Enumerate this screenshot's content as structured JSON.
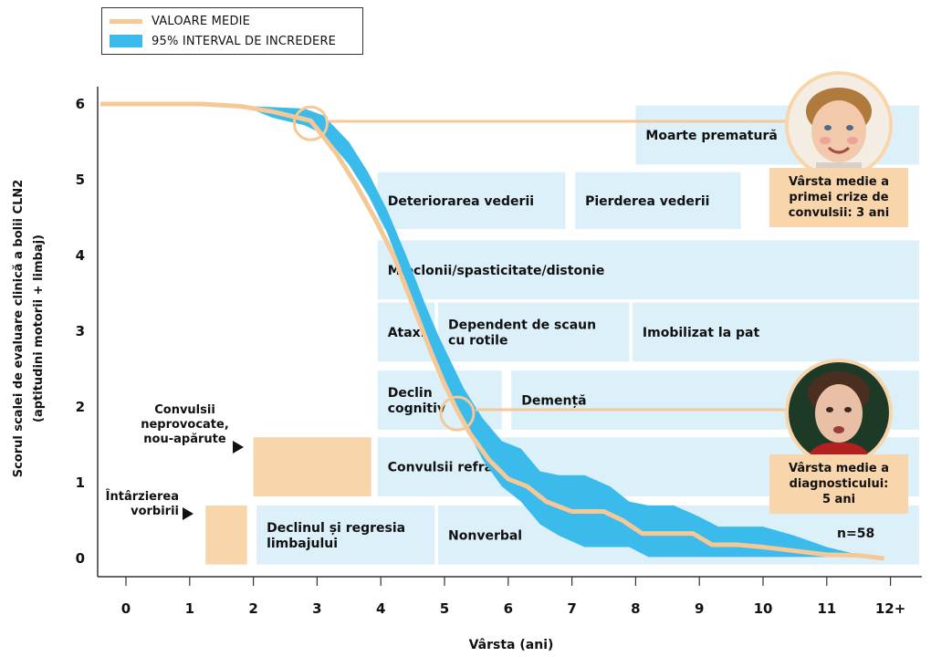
{
  "legend": {
    "mean_label": "VALOARE MEDIE",
    "ci_label": "95% INTERVAL DE INCREDERE",
    "mean_color": "#f6c896",
    "ci_color": "#3bbbeb"
  },
  "colors": {
    "symptom_box": "#dcf0fa",
    "marker_box": "#f8d5aa",
    "mean_line": "#f6c896",
    "ci_band": "#3bbbeb",
    "axis": "#333333"
  },
  "chart_data": {
    "type": "area",
    "xlabel": "Vârsta (ani)",
    "ylabel_line1": "Scorul scalei de evaluare clinică a bolii CLN2",
    "ylabel_line2": "(aptitudini motorii + limbaj)",
    "x_ticks": [
      "0",
      "1",
      "2",
      "3",
      "4",
      "5",
      "6",
      "7",
      "8",
      "9",
      "10",
      "11",
      "12+"
    ],
    "y_ticks": [
      "0",
      "1",
      "2",
      "3",
      "4",
      "5",
      "6"
    ],
    "xlim": [
      -0.4,
      12.4
    ],
    "ylim": [
      -0.05,
      6
    ],
    "grid": false,
    "legend_position": "top-left",
    "series": [
      {
        "name": "VALOARE MEDIE",
        "x": [
          -0.4,
          1.2,
          1.8,
          2.3,
          2.9,
          3.3,
          3.6,
          3.9,
          4.2,
          4.5,
          4.8,
          5.0,
          5.2,
          5.4,
          5.7,
          6.0,
          6.3,
          6.6,
          7.0,
          7.5,
          7.8,
          8.1,
          8.5,
          8.9,
          9.2,
          9.6,
          10.0,
          10.5,
          11.0,
          11.5,
          11.9
        ],
        "y": [
          6.0,
          6.0,
          5.97,
          5.9,
          5.78,
          5.35,
          4.95,
          4.5,
          4.0,
          3.35,
          2.7,
          2.3,
          1.95,
          1.65,
          1.3,
          1.05,
          0.95,
          0.75,
          0.62,
          0.62,
          0.5,
          0.33,
          0.33,
          0.33,
          0.18,
          0.18,
          0.15,
          0.1,
          0.05,
          0.04,
          0.0
        ]
      },
      {
        "name": "95% INTERVAL DE INCREDERE",
        "x": [
          -0.4,
          1.2,
          1.8,
          2.0,
          2.3,
          2.8,
          3.1,
          3.5,
          3.8,
          4.1,
          4.4,
          4.7,
          4.9,
          5.1,
          5.3,
          5.6,
          5.9,
          6.2,
          6.5,
          6.8,
          7.2,
          7.6,
          7.9,
          8.2,
          8.6,
          9.0,
          9.3,
          9.7,
          10.0,
          10.5,
          11.0,
          11.5,
          11.9
        ],
        "upper": [
          6.0,
          6.0,
          5.98,
          5.97,
          5.96,
          5.94,
          5.85,
          5.5,
          5.1,
          4.6,
          4.0,
          3.35,
          2.95,
          2.6,
          2.25,
          1.85,
          1.55,
          1.45,
          1.15,
          1.1,
          1.1,
          0.95,
          0.75,
          0.7,
          0.7,
          0.55,
          0.42,
          0.42,
          0.42,
          0.3,
          0.15,
          0.05,
          0.02
        ],
        "lower": [
          6.0,
          6.0,
          5.97,
          5.92,
          5.82,
          5.72,
          5.6,
          5.2,
          4.8,
          4.3,
          3.65,
          3.0,
          2.55,
          2.15,
          1.8,
          1.3,
          0.95,
          0.75,
          0.45,
          0.3,
          0.15,
          0.15,
          0.15,
          0.02,
          0.02,
          0.02,
          0.02,
          0.02,
          0.02,
          0.02,
          0.02,
          0.02,
          0.0
        ]
      }
    ],
    "markers": [
      {
        "x": 2.9,
        "y": 5.78
      },
      {
        "x": 5.2,
        "y": 1.95
      }
    ]
  },
  "symptom_blocks": [
    {
      "label": "Moarte prematură",
      "x0": 8.0,
      "x1": 12.45,
      "y0": 5.2,
      "y1": 5.98
    },
    {
      "label": "Deteriorarea vederii",
      "x0": 3.95,
      "x1": 6.9,
      "y0": 4.35,
      "y1": 5.1
    },
    {
      "label": "Pierderea vederii",
      "x0": 7.05,
      "x1": 9.65,
      "y0": 4.35,
      "y1": 5.1
    },
    {
      "label": "Mioclonii/spasticitate/distonie",
      "x0": 3.95,
      "x1": 12.45,
      "y0": 3.42,
      "y1": 4.2
    },
    {
      "label": "Ataxie",
      "x0": 3.95,
      "x1": 4.85,
      "y0": 2.6,
      "y1": 3.38
    },
    {
      "label": "Dependent de scaun\ncu rotile",
      "x0": 4.9,
      "x1": 7.9,
      "y0": 2.6,
      "y1": 3.38
    },
    {
      "label": "Imobilizat la pat",
      "x0": 7.95,
      "x1": 12.45,
      "y0": 2.6,
      "y1": 3.38
    },
    {
      "label": "Declin\ncognitiv",
      "x0": 3.95,
      "x1": 5.9,
      "y0": 1.7,
      "y1": 2.48
    },
    {
      "label": "Demență",
      "x0": 6.05,
      "x1": 12.45,
      "y0": 1.7,
      "y1": 2.48
    },
    {
      "label": "Convulsii refractare",
      "x0": 3.95,
      "x1": 12.45,
      "y0": 0.82,
      "y1": 1.6
    },
    {
      "label": "Declinul și regresia\nlimbajului",
      "x0": 2.05,
      "x1": 4.85,
      "y0": -0.08,
      "y1": 0.7
    },
    {
      "label": "Nonverbal",
      "x0": 4.9,
      "x1": 12.45,
      "y0": -0.08,
      "y1": 0.7
    }
  ],
  "onset_markers": [
    {
      "label": "Convulsii\nneprovocate,\nnou-apărute",
      "x0": 2.0,
      "x1": 3.85,
      "y0": 0.82,
      "y1": 1.6
    },
    {
      "label": "Întârzierea\nvorbirii",
      "x0": 1.25,
      "x1": 1.9,
      "y0": -0.08,
      "y1": 0.7
    }
  ],
  "callouts": {
    "seizure_age": "Vârsta medie a\nprimei crize de\nconvulsii: 3 ani",
    "diagnosis_age": "Vârsta medie a\ndiagnosticului:\n5 ani",
    "n_label": "n=58"
  }
}
